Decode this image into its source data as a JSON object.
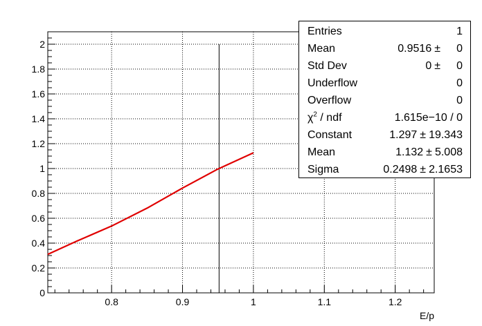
{
  "chart_data": {
    "type": "line",
    "xlabel": "E/p",
    "ylabel": "",
    "xlim": [
      0.71,
      1.255
    ],
    "ylim": [
      0,
      2.1
    ],
    "x_ticks": [
      0.8,
      0.9,
      1,
      1.1,
      1.2
    ],
    "x_tick_labels": [
      "0.8",
      "0.9",
      "1",
      "1.1",
      "1.2"
    ],
    "y_ticks": [
      0,
      0.2,
      0.4,
      0.6,
      0.8,
      1,
      1.2,
      1.4,
      1.6,
      1.8,
      2
    ],
    "y_tick_labels": [
      "0",
      "0.2",
      "0.4",
      "0.6",
      "0.8",
      "1",
      "1.2",
      "1.4",
      "1.6",
      "1.8",
      "2"
    ],
    "grid": true,
    "histogram": {
      "bin_x": 0.9516,
      "height": 2,
      "color": "#000000"
    },
    "fit": {
      "color": "#e00000",
      "x": [
        0.71,
        0.75,
        0.8,
        0.85,
        0.9,
        0.95,
        1.0
      ],
      "y": [
        0.31,
        0.414,
        0.537,
        0.681,
        0.843,
        0.996,
        1.126
      ]
    }
  },
  "stats": [
    {
      "label": "Entries",
      "value": "1",
      "pm": "",
      "err": ""
    },
    {
      "label": "Mean",
      "value": "0.9516",
      "pm": "±",
      "err": "0"
    },
    {
      "label": "Std Dev",
      "value": "0",
      "pm": "±",
      "err": "0"
    },
    {
      "label": "Underflow",
      "value": "0",
      "pm": "",
      "err": ""
    },
    {
      "label": "Overflow",
      "value": "0",
      "pm": "",
      "err": ""
    },
    {
      "label": "χ",
      "label_sup": "2",
      "label_tail": " / ndf",
      "value": "1.615e−10 / 0",
      "pm": "",
      "err": ""
    },
    {
      "label": "Constant",
      "value": "1.297",
      "pm": "±",
      "err": "19.343"
    },
    {
      "label": "Mean",
      "value": "1.132",
      "pm": "±",
      "err": "5.008"
    },
    {
      "label": "Sigma",
      "value": "0.2498",
      "pm": "±",
      "err": "2.1653"
    }
  ]
}
